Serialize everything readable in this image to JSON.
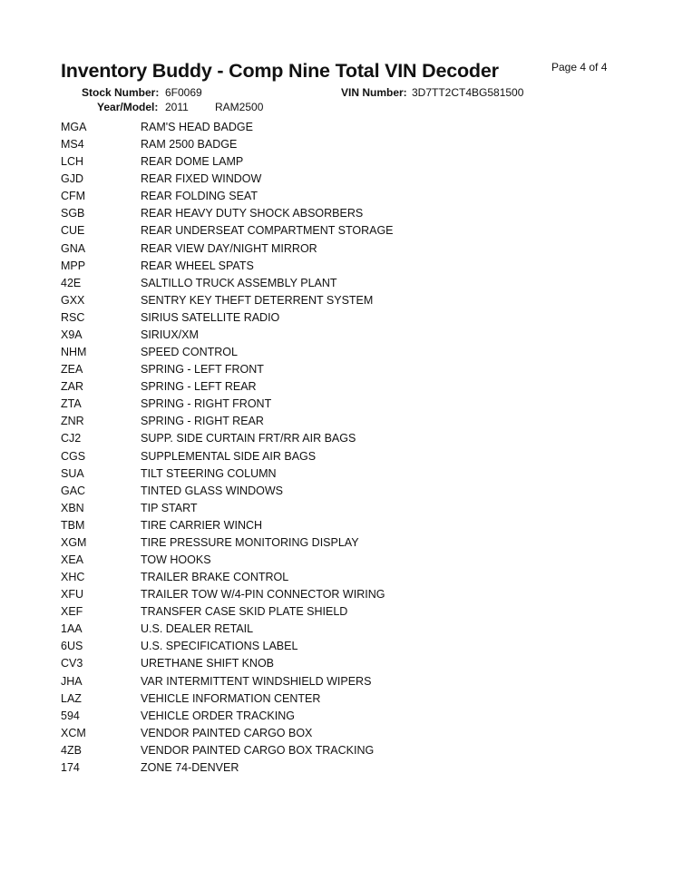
{
  "header": {
    "title": "Inventory Buddy - Comp Nine Total VIN Decoder",
    "page": "Page 4 of 4",
    "stock_label": "Stock Number:",
    "stock_value": "6F0069",
    "vin_label": "VIN Number:",
    "vin_value": "3D7TT2CT4BG581500",
    "year_label": "Year/Model:",
    "year_value": "2011",
    "model_value": "RAM2500"
  },
  "rows": [
    {
      "code": "MGA",
      "desc": "RAM'S HEAD BADGE"
    },
    {
      "code": "MS4",
      "desc": "RAM 2500 BADGE"
    },
    {
      "code": "LCH",
      "desc": "REAR DOME LAMP"
    },
    {
      "code": "GJD",
      "desc": "REAR FIXED WINDOW"
    },
    {
      "code": "CFM",
      "desc": "REAR FOLDING SEAT"
    },
    {
      "code": "SGB",
      "desc": "REAR HEAVY DUTY SHOCK ABSORBERS"
    },
    {
      "code": "CUE",
      "desc": "REAR UNDERSEAT COMPARTMENT STORAGE"
    },
    {
      "code": "GNA",
      "desc": "REAR VIEW DAY/NIGHT MIRROR"
    },
    {
      "code": "MPP",
      "desc": "REAR WHEEL SPATS"
    },
    {
      "code": "42E",
      "desc": "SALTILLO TRUCK ASSEMBLY PLANT"
    },
    {
      "code": "GXX",
      "desc": "SENTRY KEY THEFT DETERRENT SYSTEM"
    },
    {
      "code": "RSC",
      "desc": "SIRIUS SATELLITE RADIO"
    },
    {
      "code": "X9A",
      "desc": "SIRIUX/XM"
    },
    {
      "code": "NHM",
      "desc": "SPEED CONTROL"
    },
    {
      "code": "ZEA",
      "desc": "SPRING - LEFT FRONT"
    },
    {
      "code": "ZAR",
      "desc": "SPRING - LEFT REAR"
    },
    {
      "code": "ZTA",
      "desc": "SPRING - RIGHT FRONT"
    },
    {
      "code": "ZNR",
      "desc": "SPRING - RIGHT REAR"
    },
    {
      "code": "CJ2",
      "desc": "SUPP. SIDE CURTAIN FRT/RR AIR BAGS"
    },
    {
      "code": "CGS",
      "desc": "SUPPLEMENTAL SIDE AIR BAGS"
    },
    {
      "code": "SUA",
      "desc": "TILT STEERING COLUMN"
    },
    {
      "code": "GAC",
      "desc": "TINTED GLASS WINDOWS"
    },
    {
      "code": "XBN",
      "desc": "TIP START"
    },
    {
      "code": "TBM",
      "desc": "TIRE CARRIER WINCH"
    },
    {
      "code": "XGM",
      "desc": "TIRE PRESSURE MONITORING DISPLAY"
    },
    {
      "code": "XEA",
      "desc": "TOW HOOKS"
    },
    {
      "code": "XHC",
      "desc": "TRAILER BRAKE CONTROL"
    },
    {
      "code": "XFU",
      "desc": "TRAILER TOW W/4-PIN CONNECTOR WIRING"
    },
    {
      "code": "XEF",
      "desc": "TRANSFER CASE SKID PLATE SHIELD"
    },
    {
      "code": "1AA",
      "desc": "U.S. DEALER RETAIL"
    },
    {
      "code": "6US",
      "desc": "U.S. SPECIFICATIONS LABEL"
    },
    {
      "code": "CV3",
      "desc": "URETHANE SHIFT KNOB"
    },
    {
      "code": "JHA",
      "desc": "VAR INTERMITTENT WINDSHIELD WIPERS"
    },
    {
      "code": "LAZ",
      "desc": "VEHICLE INFORMATION CENTER"
    },
    {
      "code": "594",
      "desc": "VEHICLE ORDER TRACKING"
    },
    {
      "code": "XCM",
      "desc": "VENDOR PAINTED CARGO BOX"
    },
    {
      "code": "4ZB",
      "desc": "VENDOR PAINTED CARGO BOX TRACKING"
    },
    {
      "code": "174",
      "desc": "ZONE 74-DENVER"
    }
  ]
}
